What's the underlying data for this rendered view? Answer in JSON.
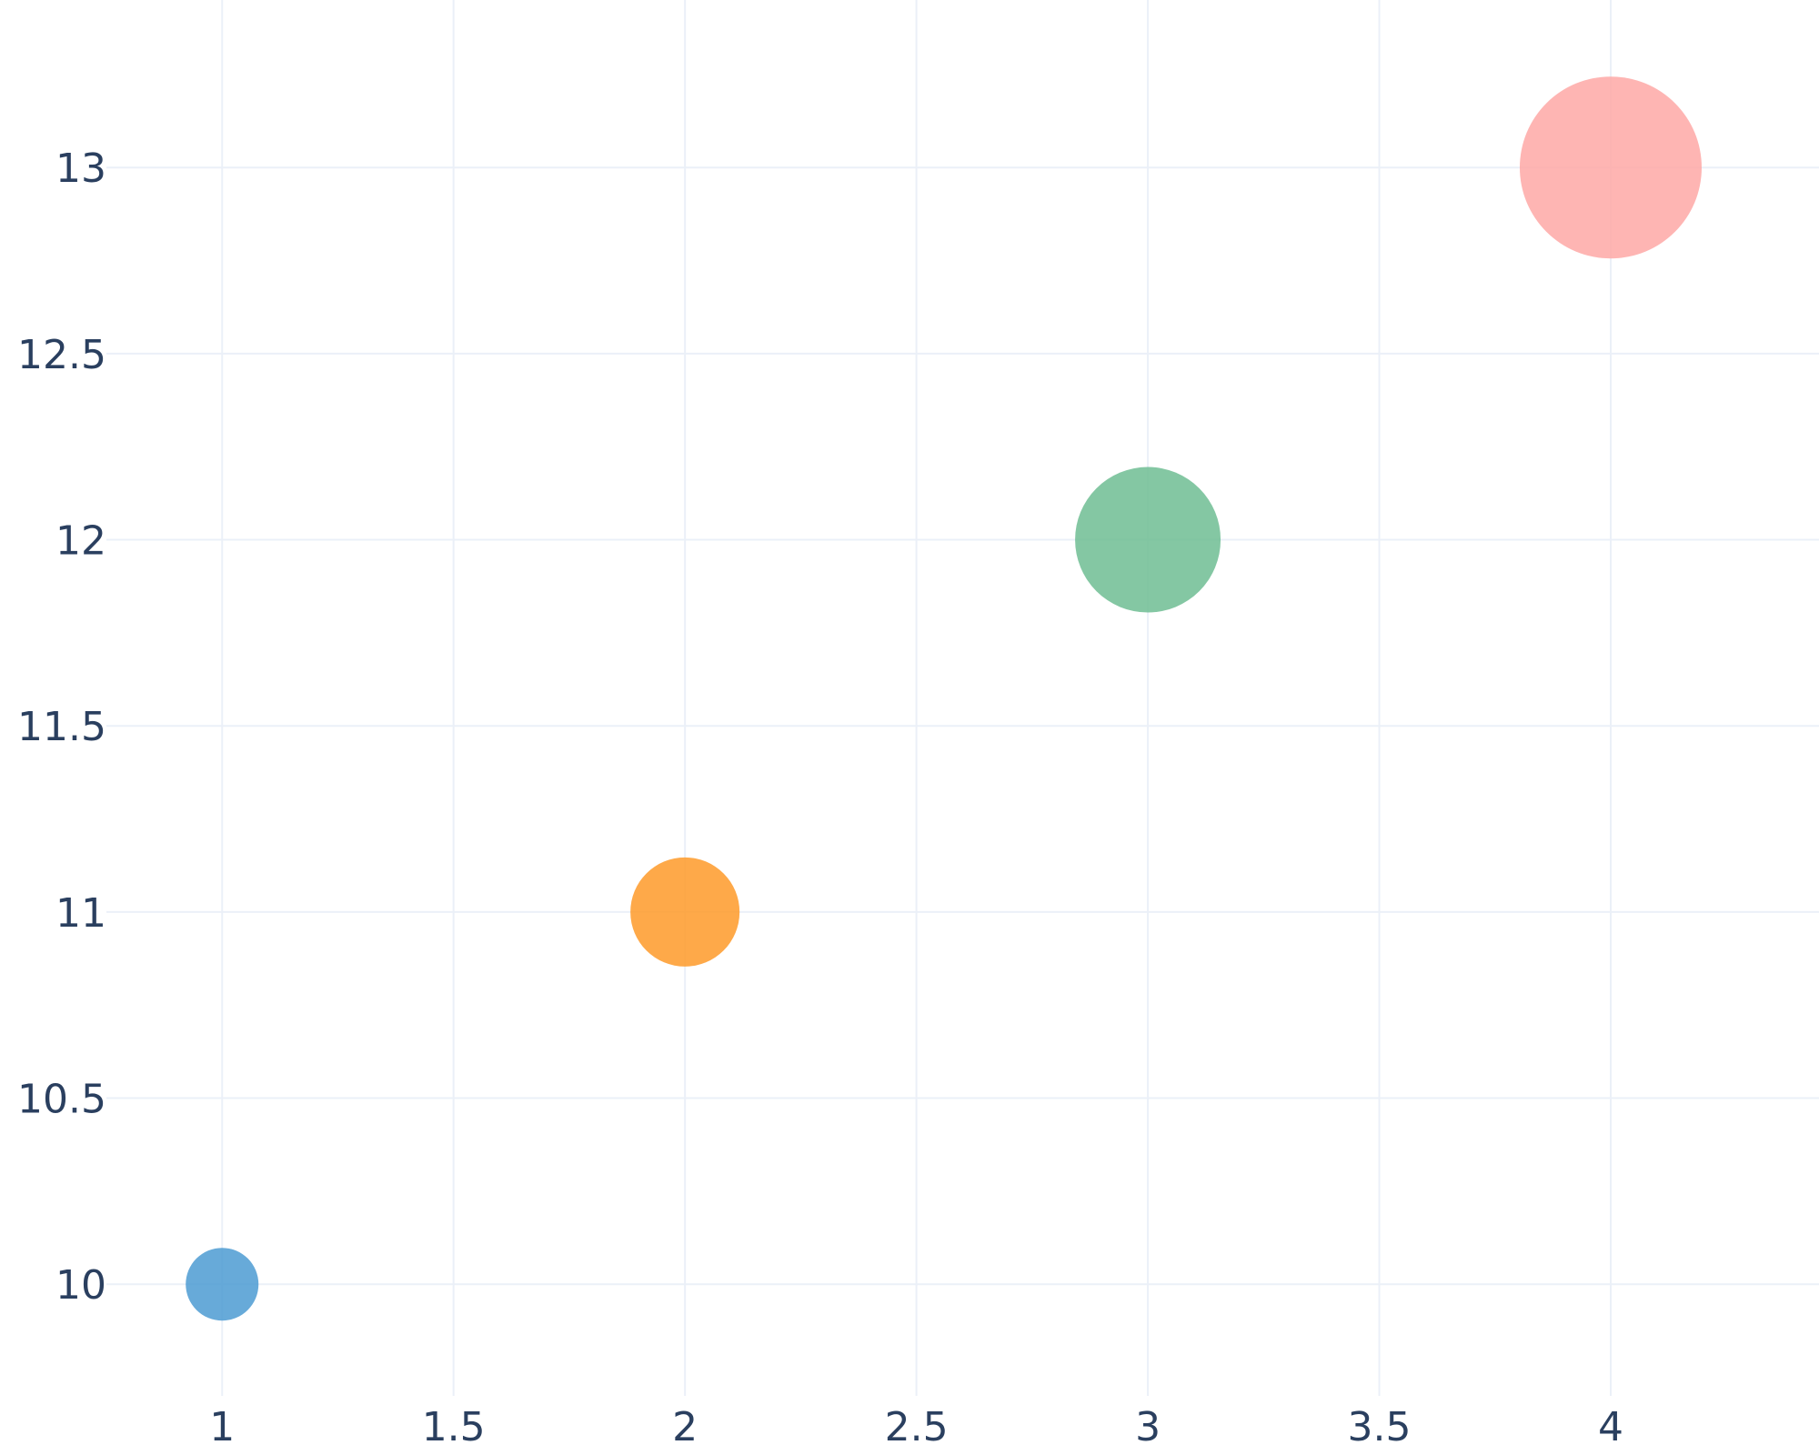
{
  "chart_data": {
    "type": "scatter",
    "title": "",
    "xlabel": "",
    "ylabel": "",
    "xlim": [
      0.75,
      4.45
    ],
    "ylim": [
      9.7,
      13.45
    ],
    "x_ticks": [
      1,
      1.5,
      2,
      2.5,
      3,
      3.5,
      4
    ],
    "y_ticks": [
      10,
      10.5,
      11,
      11.5,
      12,
      12.5,
      13
    ],
    "x_tick_labels": [
      "1",
      "1.5",
      "2",
      "2.5",
      "3",
      "3.5",
      "4"
    ],
    "y_tick_labels": [
      "10",
      "10.5",
      "11",
      "11.5",
      "12",
      "12.5",
      "13"
    ],
    "grid": true,
    "points": [
      {
        "x": 1,
        "y": 10,
        "size": 40,
        "color": "#4c9bd2"
      },
      {
        "x": 2,
        "y": 11,
        "size": 60,
        "color": "#fe9a29"
      },
      {
        "x": 3,
        "y": 12,
        "size": 80,
        "color": "#6fbd93"
      },
      {
        "x": 4,
        "y": 13,
        "size": 100,
        "color": "#fea8a6"
      }
    ]
  }
}
